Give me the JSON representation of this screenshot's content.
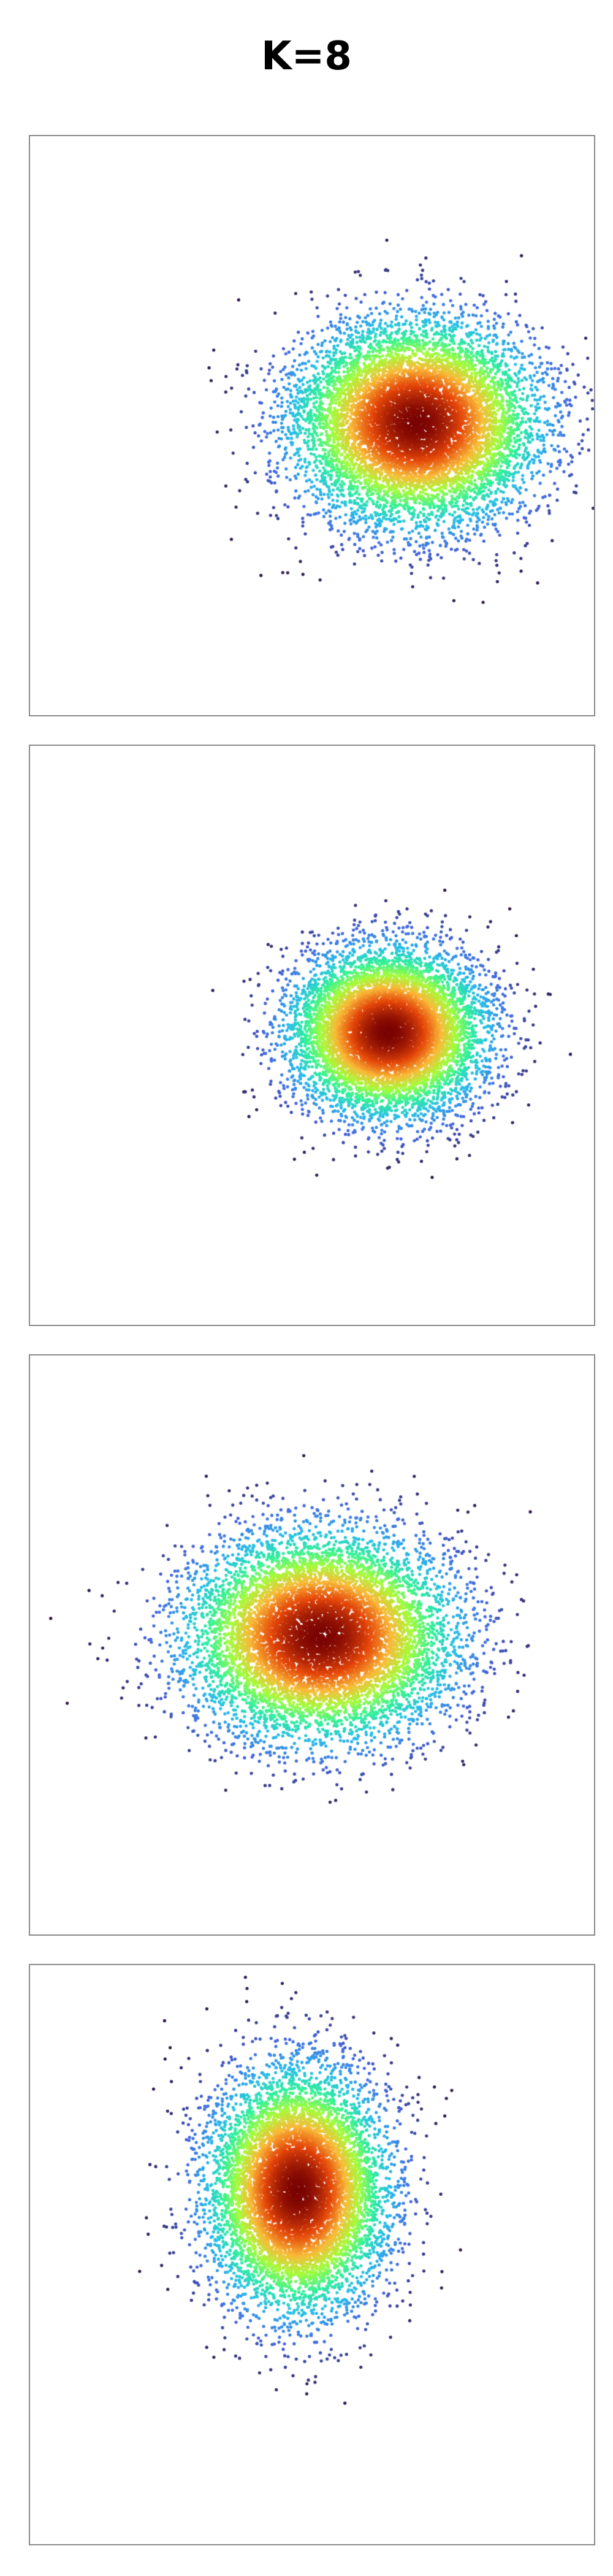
{
  "title": "K=8",
  "chart_data": [
    {
      "type": "scatter",
      "colormap": [
        "#30123b",
        "#4669e1",
        "#28bceb",
        "#31f199",
        "#a4fc3c",
        "#f9ba38",
        "#e4460a",
        "#7a0403"
      ],
      "axes_visible": false,
      "grid": false,
      "xlim": [
        0,
        1
      ],
      "ylim": [
        0,
        1
      ],
      "cluster": {
        "center": [
          0.685,
          0.505
        ],
        "spread": [
          0.104,
          0.084
        ],
        "points": 9000
      }
    },
    {
      "type": "scatter",
      "colormap": [
        "#30123b",
        "#4669e1",
        "#28bceb",
        "#31f199",
        "#a4fc3c",
        "#f9ba38",
        "#e4460a",
        "#7a0403"
      ],
      "axes_visible": false,
      "grid": false,
      "xlim": [
        0,
        1
      ],
      "ylim": [
        0,
        1
      ],
      "cluster": {
        "center": [
          0.635,
          0.505
        ],
        "spread": [
          0.083,
          0.069
        ],
        "points": 8000
      }
    },
    {
      "type": "scatter",
      "colormap": [
        "#30123b",
        "#4669e1",
        "#28bceb",
        "#31f199",
        "#a4fc3c",
        "#f9ba38",
        "#e4460a",
        "#7a0403"
      ],
      "axes_visible": false,
      "grid": false,
      "xlim": [
        0,
        1
      ],
      "ylim": [
        0,
        1
      ],
      "cluster": {
        "center": [
          0.515,
          0.515
        ],
        "spread": [
          0.113,
          0.085
        ],
        "points": 9000
      }
    },
    {
      "type": "scatter",
      "colormap": [
        "#30123b",
        "#4669e1",
        "#28bceb",
        "#31f199",
        "#a4fc3c",
        "#f9ba38",
        "#e4460a",
        "#7a0403"
      ],
      "axes_visible": false,
      "grid": false,
      "xlim": [
        0,
        1
      ],
      "ylim": [
        0,
        1
      ],
      "cluster": {
        "center": [
          0.475,
          0.61
        ],
        "spread": [
          0.076,
          0.1
        ],
        "points": 8500
      }
    }
  ]
}
